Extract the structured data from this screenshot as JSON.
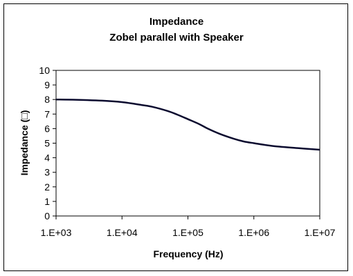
{
  "chart_data": {
    "type": "line",
    "title": "Impedance",
    "subtitle": "Zobel parallel with Speaker",
    "xlabel": "Frequency (Hz)",
    "ylabel": "Impedance (□)",
    "x_scale": "log",
    "xlim": [
      1000,
      10000000
    ],
    "ylim": [
      0,
      10
    ],
    "x_ticks": [
      "1.E+03",
      "1.E+04",
      "1.E+05",
      "1.E+06",
      "1.E+07"
    ],
    "y_ticks": [
      "0",
      "1",
      "2",
      "3",
      "4",
      "5",
      "6",
      "7",
      "8",
      "9",
      "10"
    ],
    "grid": false,
    "legend": "none",
    "series": [
      {
        "color": "#0a0a2e",
        "x": [
          1000,
          2000,
          5000,
          10000,
          20000,
          30000,
          50000,
          70000,
          100000,
          150000,
          200000,
          300000,
          500000,
          700000,
          1000000,
          2000000,
          5000000,
          10000000
        ],
        "y": [
          8.0,
          7.98,
          7.92,
          7.82,
          7.62,
          7.48,
          7.2,
          6.95,
          6.65,
          6.3,
          6.0,
          5.65,
          5.3,
          5.12,
          5.0,
          4.8,
          4.65,
          4.55
        ]
      }
    ]
  }
}
